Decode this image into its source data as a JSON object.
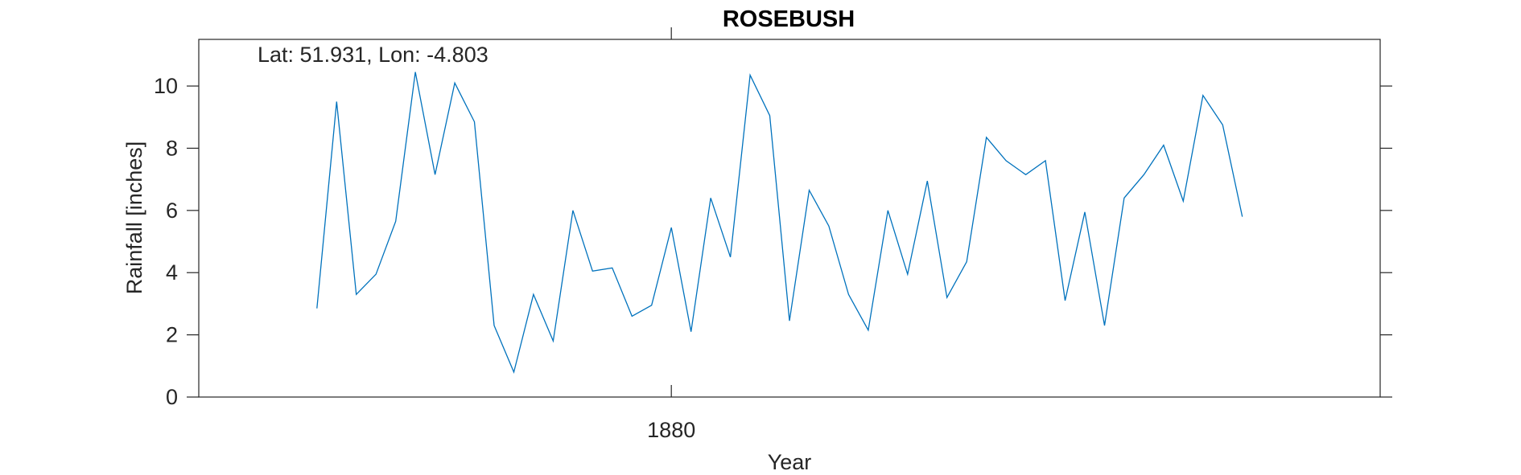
{
  "chart_data": {
    "type": "line",
    "title": "ROSEBUSH",
    "annotation": "Lat: 51.931, Lon: -4.803",
    "xlabel": "Year",
    "ylabel": "Rainfall [inches]",
    "xlim": [
      1856,
      1916
    ],
    "ylim": [
      0,
      11.5
    ],
    "xticks": [
      1880
    ],
    "yticks": [
      0,
      2,
      4,
      6,
      8,
      10
    ],
    "grid": false,
    "series": [
      {
        "color": "#0072BD",
        "x": [
          1862,
          1863,
          1864,
          1865,
          1866,
          1867,
          1868,
          1869,
          1870,
          1871,
          1872,
          1873,
          1874,
          1875,
          1876,
          1877,
          1878,
          1879,
          1880,
          1881,
          1882,
          1883,
          1884,
          1885,
          1886,
          1887,
          1888,
          1889,
          1890,
          1891,
          1892,
          1893,
          1894,
          1895,
          1896,
          1897,
          1898,
          1899,
          1900,
          1901,
          1902,
          1903,
          1904,
          1905,
          1906,
          1907,
          1908,
          1909
        ],
        "y": [
          2.85,
          9.5,
          3.3,
          3.95,
          5.65,
          10.45,
          7.15,
          10.1,
          8.85,
          2.3,
          0.8,
          3.3,
          1.8,
          6.0,
          4.05,
          4.15,
          2.6,
          2.95,
          5.45,
          2.1,
          6.4,
          4.5,
          10.35,
          9.05,
          2.45,
          6.65,
          5.5,
          3.3,
          2.15,
          6.0,
          3.95,
          6.95,
          3.2,
          4.35,
          8.35,
          7.6,
          7.15,
          7.6,
          3.1,
          5.95,
          2.3,
          6.4,
          7.15,
          8.1,
          6.3,
          9.7,
          8.75,
          5.8
        ]
      }
    ]
  }
}
